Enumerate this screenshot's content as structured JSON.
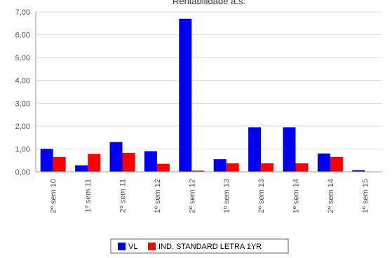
{
  "chart_data": {
    "type": "bar",
    "title": "Rentabilidade a.s.",
    "categories": [
      "2º sem  10",
      "1º sem  11",
      "2º sem  11",
      "1º sem  12",
      "2º sem  12",
      "1º sem  13",
      "2º sem  13",
      "1º sem  14",
      "2º sem  14",
      "1º sem  15"
    ],
    "series": [
      {
        "name": "VL",
        "color": "#0000ee",
        "values": [
          1.0,
          0.28,
          1.3,
          0.9,
          6.7,
          0.55,
          1.95,
          1.95,
          0.8,
          0.07
        ]
      },
      {
        "name": "IND. STANDARD LETRA 1YR",
        "color": "#ff0000",
        "values": [
          0.65,
          0.78,
          0.83,
          0.35,
          0.05,
          0.37,
          0.37,
          0.37,
          0.65,
          0.0
        ]
      }
    ],
    "ylim": [
      0,
      7
    ],
    "yticks": [
      "0,00",
      "1,00",
      "2,00",
      "3,00",
      "4,00",
      "5,00",
      "6,00",
      "7,00"
    ],
    "grid": true,
    "legend": "bottom"
  }
}
